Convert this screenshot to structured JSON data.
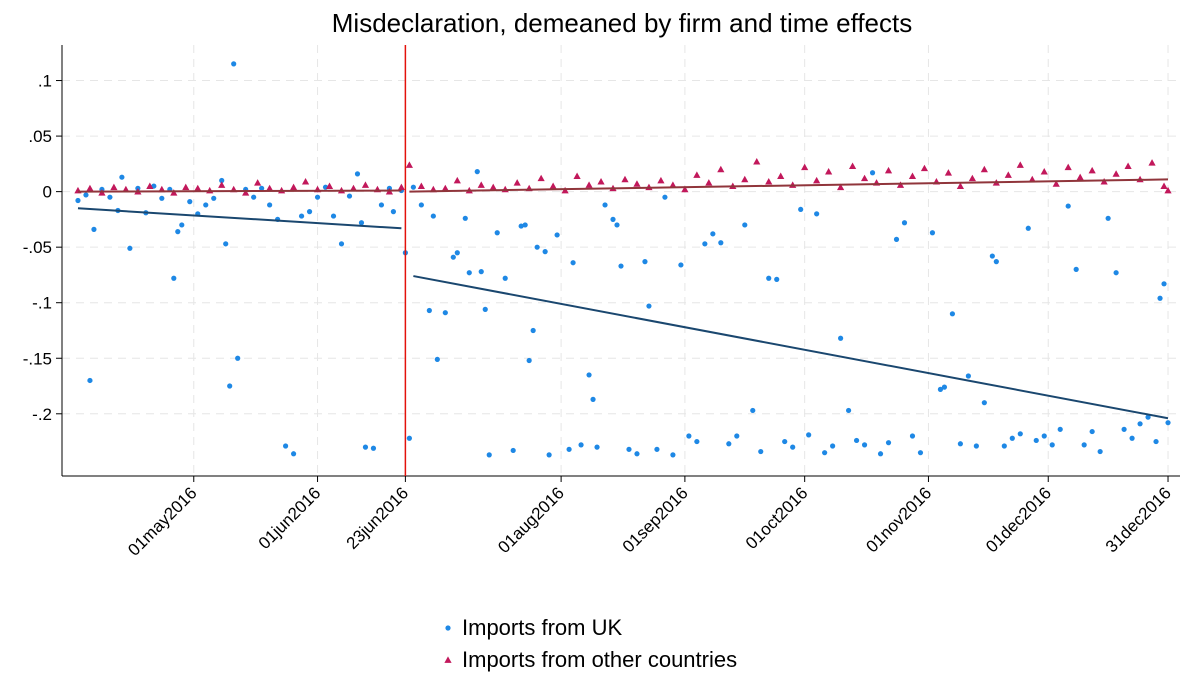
{
  "chart_data": {
    "type": "scatter",
    "title": "Misdeclaration, demeaned by firm and time effects",
    "xlim": [
      "2016-03-29",
      "2017-01-03"
    ],
    "ylim": [
      -0.256,
      0.132
    ],
    "xticks": [
      {
        "value": "2016-05-01",
        "label": "01may2016"
      },
      {
        "value": "2016-06-01",
        "label": "01jun2016"
      },
      {
        "value": "2016-06-23",
        "label": "23jun2016"
      },
      {
        "value": "2016-08-01",
        "label": "01aug2016"
      },
      {
        "value": "2016-09-01",
        "label": "01sep2016"
      },
      {
        "value": "2016-10-01",
        "label": "01oct2016"
      },
      {
        "value": "2016-11-01",
        "label": "01nov2016"
      },
      {
        "value": "2016-12-01",
        "label": "01dec2016"
      },
      {
        "value": "2016-12-31",
        "label": "31dec2016"
      }
    ],
    "yticks": [
      {
        "value": 0.1,
        "label": ".1"
      },
      {
        "value": 0.05,
        "label": ".05"
      },
      0,
      {
        "value": -0.05,
        "label": "-.05"
      },
      {
        "value": -0.1,
        "label": "-.1"
      },
      {
        "value": -0.15,
        "label": "-.15"
      },
      {
        "value": -0.2,
        "label": "-.2"
      }
    ],
    "grid": true,
    "legend": "bottom",
    "vline": {
      "x": "2016-06-23",
      "color": "#e3120b"
    },
    "series": [
      {
        "name": "Imports from UK",
        "color": "#1e88e5",
        "marker": "circle",
        "x": [
          "2016-04-02",
          "2016-04-04",
          "2016-04-05",
          "2016-04-06",
          "2016-04-08",
          "2016-04-10",
          "2016-04-12",
          "2016-04-13",
          "2016-04-15",
          "2016-04-17",
          "2016-04-19",
          "2016-04-21",
          "2016-04-23",
          "2016-04-25",
          "2016-04-26",
          "2016-04-27",
          "2016-04-28",
          "2016-04-30",
          "2016-05-02",
          "2016-05-04",
          "2016-05-06",
          "2016-05-08",
          "2016-05-09",
          "2016-05-10",
          "2016-05-11",
          "2016-05-12",
          "2016-05-14",
          "2016-05-16",
          "2016-05-18",
          "2016-05-20",
          "2016-05-22",
          "2016-05-24",
          "2016-05-26",
          "2016-05-28",
          "2016-05-30",
          "2016-06-01",
          "2016-06-03",
          "2016-06-05",
          "2016-06-07",
          "2016-06-09",
          "2016-06-11",
          "2016-06-12",
          "2016-06-13",
          "2016-06-15",
          "2016-06-17",
          "2016-06-19",
          "2016-06-20",
          "2016-06-22",
          "2016-06-23",
          "2016-06-24",
          "2016-06-25",
          "2016-06-27",
          "2016-06-29",
          "2016-06-30",
          "2016-07-01",
          "2016-07-03",
          "2016-07-05",
          "2016-07-06",
          "2016-07-08",
          "2016-07-09",
          "2016-07-11",
          "2016-07-12",
          "2016-07-13",
          "2016-07-14",
          "2016-07-16",
          "2016-07-18",
          "2016-07-20",
          "2016-07-22",
          "2016-07-23",
          "2016-07-24",
          "2016-07-25",
          "2016-07-26",
          "2016-07-28",
          "2016-07-29",
          "2016-07-31",
          "2016-08-03",
          "2016-08-04",
          "2016-08-06",
          "2016-08-08",
          "2016-08-09",
          "2016-08-10",
          "2016-08-12",
          "2016-08-14",
          "2016-08-15",
          "2016-08-16",
          "2016-08-18",
          "2016-08-20",
          "2016-08-22",
          "2016-08-23",
          "2016-08-25",
          "2016-08-27",
          "2016-08-29",
          "2016-08-31",
          "2016-09-02",
          "2016-09-04",
          "2016-09-06",
          "2016-09-08",
          "2016-09-10",
          "2016-09-12",
          "2016-09-14",
          "2016-09-16",
          "2016-09-18",
          "2016-09-20",
          "2016-09-22",
          "2016-09-24",
          "2016-09-26",
          "2016-09-28",
          "2016-09-30",
          "2016-10-02",
          "2016-10-04",
          "2016-10-06",
          "2016-10-08",
          "2016-10-10",
          "2016-10-12",
          "2016-10-14",
          "2016-10-16",
          "2016-10-18",
          "2016-10-20",
          "2016-10-22",
          "2016-10-24",
          "2016-10-26",
          "2016-10-28",
          "2016-10-30",
          "2016-11-02",
          "2016-11-04",
          "2016-11-05",
          "2016-11-07",
          "2016-11-09",
          "2016-11-11",
          "2016-11-13",
          "2016-11-15",
          "2016-11-17",
          "2016-11-18",
          "2016-11-20",
          "2016-11-22",
          "2016-11-24",
          "2016-11-26",
          "2016-11-28",
          "2016-11-30",
          "2016-12-02",
          "2016-12-04",
          "2016-12-06",
          "2016-12-08",
          "2016-12-10",
          "2016-12-12",
          "2016-12-14",
          "2016-12-16",
          "2016-12-18",
          "2016-12-20",
          "2016-12-22",
          "2016-12-24",
          "2016-12-26",
          "2016-12-28",
          "2016-12-29",
          "2016-12-30",
          "2016-12-31"
        ],
        "values": [
          -0.008,
          -0.003,
          -0.17,
          -0.034,
          0.002,
          -0.005,
          -0.017,
          0.013,
          -0.051,
          0.003,
          -0.019,
          0.005,
          -0.006,
          0.002,
          -0.078,
          -0.036,
          -0.03,
          -0.009,
          -0.02,
          -0.012,
          -0.006,
          0.01,
          -0.047,
          -0.175,
          0.115,
          -0.15,
          0.002,
          -0.005,
          0.003,
          -0.012,
          -0.025,
          -0.229,
          -0.236,
          -0.022,
          -0.018,
          -0.005,
          0.004,
          -0.022,
          -0.047,
          -0.004,
          0.016,
          -0.028,
          -0.23,
          -0.231,
          -0.012,
          0.003,
          -0.018,
          0.001,
          -0.055,
          -0.222,
          0.004,
          -0.012,
          -0.107,
          -0.022,
          -0.151,
          -0.109,
          -0.059,
          -0.055,
          -0.024,
          -0.073,
          0.018,
          -0.072,
          -0.106,
          -0.237,
          -0.037,
          -0.078,
          -0.233,
          -0.031,
          -0.03,
          -0.152,
          -0.125,
          -0.05,
          -0.054,
          -0.237,
          -0.039,
          -0.232,
          -0.064,
          -0.228,
          -0.165,
          -0.187,
          -0.23,
          -0.012,
          -0.025,
          -0.03,
          -0.067,
          -0.232,
          -0.236,
          -0.063,
          -0.103,
          -0.232,
          -0.005,
          -0.237,
          -0.066,
          -0.22,
          -0.225,
          -0.047,
          -0.038,
          -0.046,
          -0.227,
          -0.22,
          -0.03,
          -0.197,
          -0.234,
          -0.078,
          -0.079,
          -0.225,
          -0.23,
          -0.016,
          -0.219,
          -0.02,
          -0.235,
          -0.229,
          -0.132,
          -0.197,
          -0.224,
          -0.228,
          0.017,
          -0.236,
          -0.226,
          -0.043,
          -0.028,
          -0.22,
          -0.235,
          -0.037,
          -0.178,
          -0.176,
          -0.11,
          -0.227,
          -0.166,
          -0.229,
          -0.19,
          -0.058,
          -0.063,
          -0.229,
          -0.222,
          -0.218,
          -0.033,
          -0.224,
          -0.22,
          -0.228,
          -0.214,
          -0.013,
          -0.07,
          -0.228,
          -0.216,
          -0.234,
          -0.024,
          -0.073,
          -0.214,
          -0.222,
          -0.209,
          -0.203,
          -0.225,
          -0.096,
          -0.083,
          -0.208
        ]
      },
      {
        "name": "Imports from other countries",
        "color": "#c2185b",
        "marker": "triangle",
        "x": [
          "2016-04-02",
          "2016-04-05",
          "2016-04-08",
          "2016-04-11",
          "2016-04-14",
          "2016-04-17",
          "2016-04-20",
          "2016-04-23",
          "2016-04-26",
          "2016-04-29",
          "2016-05-02",
          "2016-05-05",
          "2016-05-08",
          "2016-05-11",
          "2016-05-14",
          "2016-05-17",
          "2016-05-20",
          "2016-05-23",
          "2016-05-26",
          "2016-05-29",
          "2016-06-01",
          "2016-06-04",
          "2016-06-07",
          "2016-06-10",
          "2016-06-13",
          "2016-06-16",
          "2016-06-19",
          "2016-06-22",
          "2016-06-24",
          "2016-06-27",
          "2016-06-30",
          "2016-07-03",
          "2016-07-06",
          "2016-07-09",
          "2016-07-12",
          "2016-07-15",
          "2016-07-18",
          "2016-07-21",
          "2016-07-24",
          "2016-07-27",
          "2016-07-30",
          "2016-08-02",
          "2016-08-05",
          "2016-08-08",
          "2016-08-11",
          "2016-08-14",
          "2016-08-17",
          "2016-08-20",
          "2016-08-23",
          "2016-08-26",
          "2016-08-29",
          "2016-09-01",
          "2016-09-04",
          "2016-09-07",
          "2016-09-10",
          "2016-09-13",
          "2016-09-16",
          "2016-09-19",
          "2016-09-22",
          "2016-09-25",
          "2016-09-28",
          "2016-10-01",
          "2016-10-04",
          "2016-10-07",
          "2016-10-10",
          "2016-10-13",
          "2016-10-16",
          "2016-10-19",
          "2016-10-22",
          "2016-10-25",
          "2016-10-28",
          "2016-10-31",
          "2016-11-03",
          "2016-11-06",
          "2016-11-09",
          "2016-11-12",
          "2016-11-15",
          "2016-11-18",
          "2016-11-21",
          "2016-11-24",
          "2016-11-27",
          "2016-11-30",
          "2016-12-03",
          "2016-12-06",
          "2016-12-09",
          "2016-12-12",
          "2016-12-15",
          "2016-12-18",
          "2016-12-21",
          "2016-12-24",
          "2016-12-27",
          "2016-12-30",
          "2016-12-31"
        ],
        "values": [
          0.001,
          0.003,
          -0.001,
          0.004,
          0.002,
          0.0,
          0.005,
          0.002,
          -0.001,
          0.004,
          0.003,
          0.001,
          0.006,
          0.002,
          -0.001,
          0.008,
          0.003,
          0.001,
          0.004,
          0.009,
          0.002,
          0.005,
          0.001,
          0.003,
          0.006,
          0.002,
          0.0,
          0.004,
          0.024,
          0.005,
          0.002,
          0.003,
          0.01,
          0.001,
          0.006,
          0.004,
          0.002,
          0.008,
          0.003,
          0.012,
          0.005,
          0.001,
          0.014,
          0.006,
          0.009,
          0.003,
          0.011,
          0.007,
          0.004,
          0.01,
          0.006,
          0.002,
          0.015,
          0.008,
          0.02,
          0.005,
          0.011,
          0.027,
          0.009,
          0.014,
          0.006,
          0.022,
          0.01,
          0.018,
          0.004,
          0.023,
          0.012,
          0.008,
          0.019,
          0.006,
          0.014,
          0.021,
          0.009,
          0.017,
          0.005,
          0.012,
          0.02,
          0.008,
          0.015,
          0.024,
          0.011,
          0.018,
          0.007,
          0.022,
          0.013,
          0.019,
          0.009,
          0.016,
          0.023,
          0.011,
          0.026,
          0.005,
          0.001
        ]
      }
    ],
    "fit_lines": [
      {
        "color": "#1a476f",
        "x": [
          "2016-04-02",
          "2016-06-22"
        ],
        "values": [
          -0.015,
          -0.033
        ]
      },
      {
        "color": "#1a476f",
        "x": [
          "2016-06-25",
          "2016-12-31"
        ],
        "values": [
          -0.076,
          -0.204
        ]
      },
      {
        "color": "#90353b",
        "x": [
          "2016-04-02",
          "2016-06-22"
        ],
        "values": [
          0.0,
          0.001
        ]
      },
      {
        "color": "#90353b",
        "x": [
          "2016-06-24",
          "2016-12-31"
        ],
        "values": [
          0.0,
          0.011
        ]
      }
    ]
  }
}
